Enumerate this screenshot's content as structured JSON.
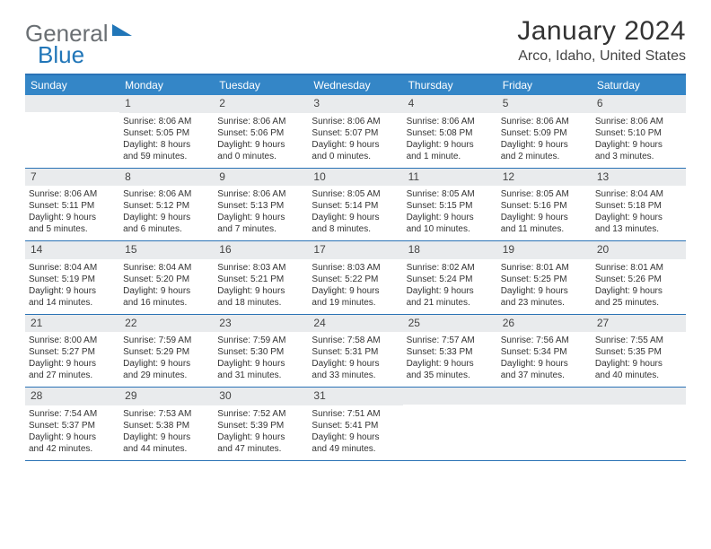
{
  "logo": {
    "word1": "General",
    "word2": "Blue"
  },
  "title": "January 2024",
  "location": "Arco, Idaho, United States",
  "colors": {
    "header_bg": "#3486c7",
    "header_text": "#ffffff",
    "border": "#2a72b5",
    "daynum_bg": "#e9ebed",
    "text": "#333333",
    "logo_gray": "#6a6f73",
    "logo_blue": "#2176b8"
  },
  "day_names": [
    "Sunday",
    "Monday",
    "Tuesday",
    "Wednesday",
    "Thursday",
    "Friday",
    "Saturday"
  ],
  "weeks": [
    [
      {
        "day": "",
        "sunrise": "",
        "sunset": "",
        "daylight1": "",
        "daylight2": ""
      },
      {
        "day": "1",
        "sunrise": "Sunrise: 8:06 AM",
        "sunset": "Sunset: 5:05 PM",
        "daylight1": "Daylight: 8 hours",
        "daylight2": "and 59 minutes."
      },
      {
        "day": "2",
        "sunrise": "Sunrise: 8:06 AM",
        "sunset": "Sunset: 5:06 PM",
        "daylight1": "Daylight: 9 hours",
        "daylight2": "and 0 minutes."
      },
      {
        "day": "3",
        "sunrise": "Sunrise: 8:06 AM",
        "sunset": "Sunset: 5:07 PM",
        "daylight1": "Daylight: 9 hours",
        "daylight2": "and 0 minutes."
      },
      {
        "day": "4",
        "sunrise": "Sunrise: 8:06 AM",
        "sunset": "Sunset: 5:08 PM",
        "daylight1": "Daylight: 9 hours",
        "daylight2": "and 1 minute."
      },
      {
        "day": "5",
        "sunrise": "Sunrise: 8:06 AM",
        "sunset": "Sunset: 5:09 PM",
        "daylight1": "Daylight: 9 hours",
        "daylight2": "and 2 minutes."
      },
      {
        "day": "6",
        "sunrise": "Sunrise: 8:06 AM",
        "sunset": "Sunset: 5:10 PM",
        "daylight1": "Daylight: 9 hours",
        "daylight2": "and 3 minutes."
      }
    ],
    [
      {
        "day": "7",
        "sunrise": "Sunrise: 8:06 AM",
        "sunset": "Sunset: 5:11 PM",
        "daylight1": "Daylight: 9 hours",
        "daylight2": "and 5 minutes."
      },
      {
        "day": "8",
        "sunrise": "Sunrise: 8:06 AM",
        "sunset": "Sunset: 5:12 PM",
        "daylight1": "Daylight: 9 hours",
        "daylight2": "and 6 minutes."
      },
      {
        "day": "9",
        "sunrise": "Sunrise: 8:06 AM",
        "sunset": "Sunset: 5:13 PM",
        "daylight1": "Daylight: 9 hours",
        "daylight2": "and 7 minutes."
      },
      {
        "day": "10",
        "sunrise": "Sunrise: 8:05 AM",
        "sunset": "Sunset: 5:14 PM",
        "daylight1": "Daylight: 9 hours",
        "daylight2": "and 8 minutes."
      },
      {
        "day": "11",
        "sunrise": "Sunrise: 8:05 AM",
        "sunset": "Sunset: 5:15 PM",
        "daylight1": "Daylight: 9 hours",
        "daylight2": "and 10 minutes."
      },
      {
        "day": "12",
        "sunrise": "Sunrise: 8:05 AM",
        "sunset": "Sunset: 5:16 PM",
        "daylight1": "Daylight: 9 hours",
        "daylight2": "and 11 minutes."
      },
      {
        "day": "13",
        "sunrise": "Sunrise: 8:04 AM",
        "sunset": "Sunset: 5:18 PM",
        "daylight1": "Daylight: 9 hours",
        "daylight2": "and 13 minutes."
      }
    ],
    [
      {
        "day": "14",
        "sunrise": "Sunrise: 8:04 AM",
        "sunset": "Sunset: 5:19 PM",
        "daylight1": "Daylight: 9 hours",
        "daylight2": "and 14 minutes."
      },
      {
        "day": "15",
        "sunrise": "Sunrise: 8:04 AM",
        "sunset": "Sunset: 5:20 PM",
        "daylight1": "Daylight: 9 hours",
        "daylight2": "and 16 minutes."
      },
      {
        "day": "16",
        "sunrise": "Sunrise: 8:03 AM",
        "sunset": "Sunset: 5:21 PM",
        "daylight1": "Daylight: 9 hours",
        "daylight2": "and 18 minutes."
      },
      {
        "day": "17",
        "sunrise": "Sunrise: 8:03 AM",
        "sunset": "Sunset: 5:22 PM",
        "daylight1": "Daylight: 9 hours",
        "daylight2": "and 19 minutes."
      },
      {
        "day": "18",
        "sunrise": "Sunrise: 8:02 AM",
        "sunset": "Sunset: 5:24 PM",
        "daylight1": "Daylight: 9 hours",
        "daylight2": "and 21 minutes."
      },
      {
        "day": "19",
        "sunrise": "Sunrise: 8:01 AM",
        "sunset": "Sunset: 5:25 PM",
        "daylight1": "Daylight: 9 hours",
        "daylight2": "and 23 minutes."
      },
      {
        "day": "20",
        "sunrise": "Sunrise: 8:01 AM",
        "sunset": "Sunset: 5:26 PM",
        "daylight1": "Daylight: 9 hours",
        "daylight2": "and 25 minutes."
      }
    ],
    [
      {
        "day": "21",
        "sunrise": "Sunrise: 8:00 AM",
        "sunset": "Sunset: 5:27 PM",
        "daylight1": "Daylight: 9 hours",
        "daylight2": "and 27 minutes."
      },
      {
        "day": "22",
        "sunrise": "Sunrise: 7:59 AM",
        "sunset": "Sunset: 5:29 PM",
        "daylight1": "Daylight: 9 hours",
        "daylight2": "and 29 minutes."
      },
      {
        "day": "23",
        "sunrise": "Sunrise: 7:59 AM",
        "sunset": "Sunset: 5:30 PM",
        "daylight1": "Daylight: 9 hours",
        "daylight2": "and 31 minutes."
      },
      {
        "day": "24",
        "sunrise": "Sunrise: 7:58 AM",
        "sunset": "Sunset: 5:31 PM",
        "daylight1": "Daylight: 9 hours",
        "daylight2": "and 33 minutes."
      },
      {
        "day": "25",
        "sunrise": "Sunrise: 7:57 AM",
        "sunset": "Sunset: 5:33 PM",
        "daylight1": "Daylight: 9 hours",
        "daylight2": "and 35 minutes."
      },
      {
        "day": "26",
        "sunrise": "Sunrise: 7:56 AM",
        "sunset": "Sunset: 5:34 PM",
        "daylight1": "Daylight: 9 hours",
        "daylight2": "and 37 minutes."
      },
      {
        "day": "27",
        "sunrise": "Sunrise: 7:55 AM",
        "sunset": "Sunset: 5:35 PM",
        "daylight1": "Daylight: 9 hours",
        "daylight2": "and 40 minutes."
      }
    ],
    [
      {
        "day": "28",
        "sunrise": "Sunrise: 7:54 AM",
        "sunset": "Sunset: 5:37 PM",
        "daylight1": "Daylight: 9 hours",
        "daylight2": "and 42 minutes."
      },
      {
        "day": "29",
        "sunrise": "Sunrise: 7:53 AM",
        "sunset": "Sunset: 5:38 PM",
        "daylight1": "Daylight: 9 hours",
        "daylight2": "and 44 minutes."
      },
      {
        "day": "30",
        "sunrise": "Sunrise: 7:52 AM",
        "sunset": "Sunset: 5:39 PM",
        "daylight1": "Daylight: 9 hours",
        "daylight2": "and 47 minutes."
      },
      {
        "day": "31",
        "sunrise": "Sunrise: 7:51 AM",
        "sunset": "Sunset: 5:41 PM",
        "daylight1": "Daylight: 9 hours",
        "daylight2": "and 49 minutes."
      },
      {
        "day": "",
        "sunrise": "",
        "sunset": "",
        "daylight1": "",
        "daylight2": ""
      },
      {
        "day": "",
        "sunrise": "",
        "sunset": "",
        "daylight1": "",
        "daylight2": ""
      },
      {
        "day": "",
        "sunrise": "",
        "sunset": "",
        "daylight1": "",
        "daylight2": ""
      }
    ]
  ]
}
